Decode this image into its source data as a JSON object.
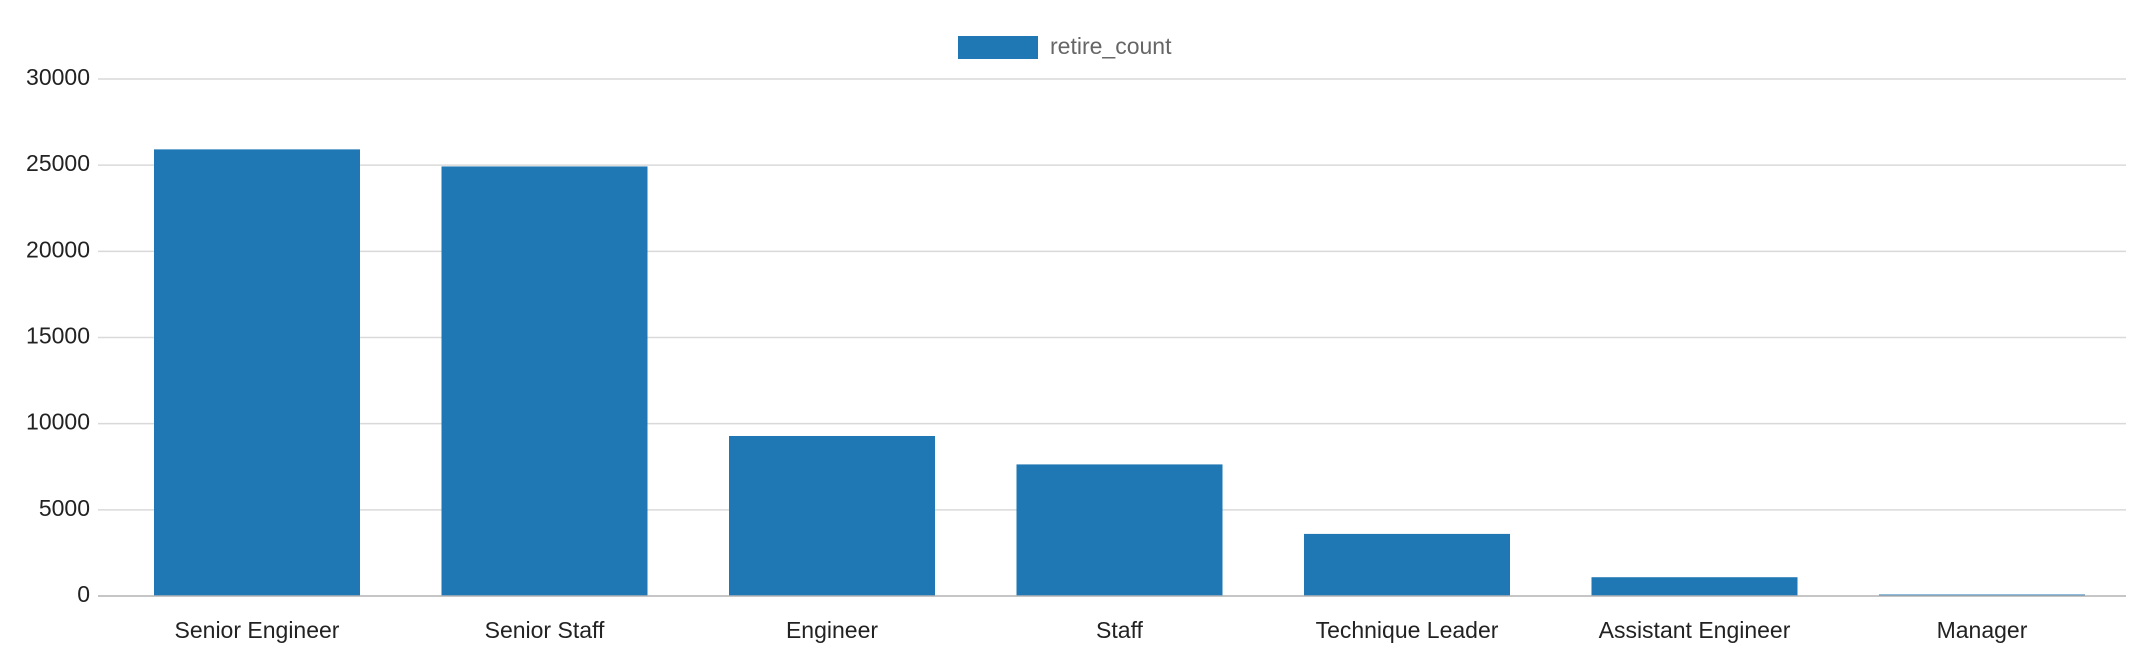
{
  "chart_data": {
    "type": "bar",
    "categories": [
      "Senior Engineer",
      "Senior Staff",
      "Engineer",
      "Staff",
      "Technique Leader",
      "Assistant Engineer",
      "Manager"
    ],
    "series": [
      {
        "name": "retire_count",
        "values": [
          25916,
          24926,
          9285,
          7636,
          3603,
          1090,
          2
        ],
        "color": "#1f77b4"
      }
    ],
    "ylim": [
      0,
      30000
    ],
    "yticks": [
      0,
      5000,
      10000,
      15000,
      20000,
      25000,
      30000
    ],
    "grid": true,
    "legend_position": "top-center"
  }
}
